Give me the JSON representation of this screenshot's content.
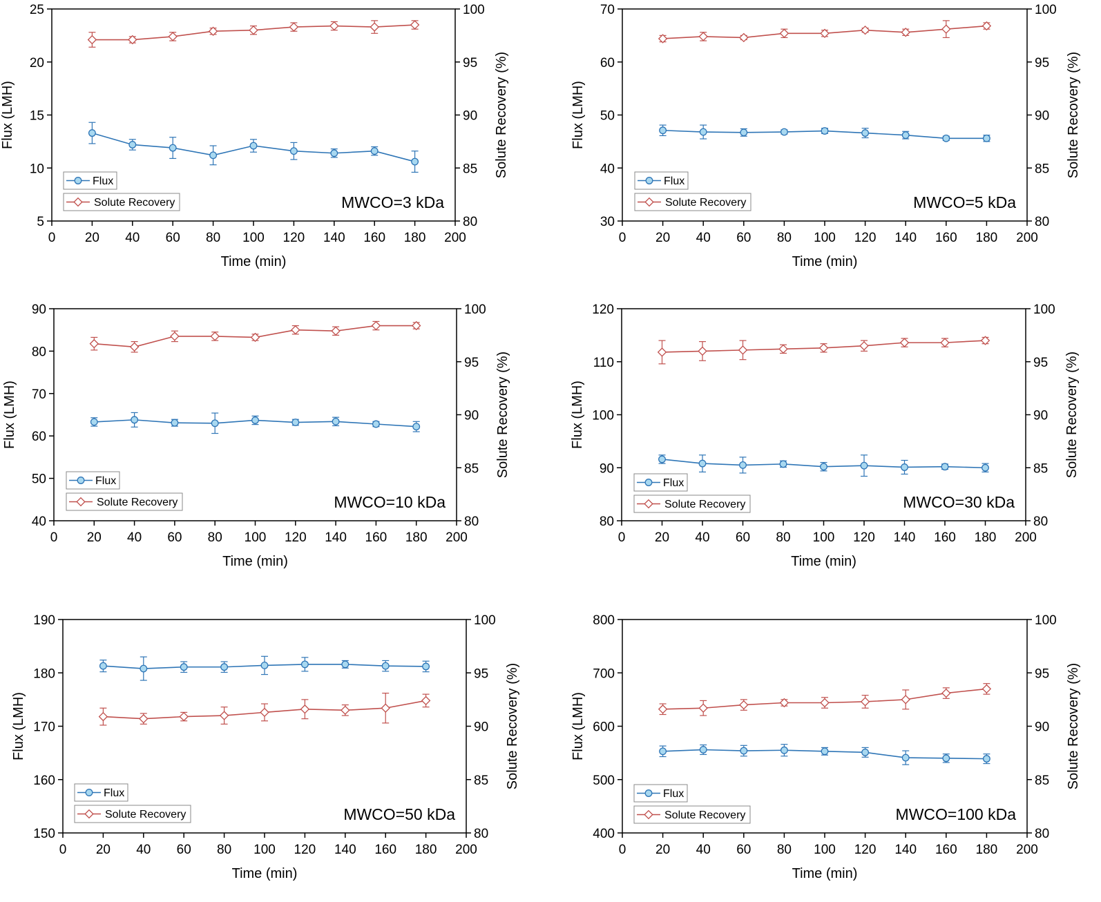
{
  "figure": {
    "series_names": [
      "Flux",
      "Solute Recovery"
    ],
    "colors": {
      "flux": "#2e75b6",
      "flux_fill": "#a8d8f0",
      "recovery": "#c0504d",
      "recovery_fill": "#ffffff",
      "axis": "#000000"
    }
  },
  "chart_data": [
    {
      "type": "line",
      "annotation": "MWCO=3 kDa",
      "xlabel": "Time (min)",
      "ylabel": "Flux (LMH)",
      "y2label": "Solute Recovery (%)",
      "xlim": [
        0,
        200
      ],
      "xticks": [
        0,
        20,
        40,
        60,
        80,
        100,
        120,
        140,
        160,
        180,
        200
      ],
      "ylim": [
        5,
        25
      ],
      "yticks": [
        5,
        10,
        15,
        20,
        25
      ],
      "y2lim": [
        80,
        100
      ],
      "y2ticks": [
        80,
        85,
        90,
        95,
        100
      ],
      "x": [
        20,
        40,
        60,
        80,
        100,
        120,
        140,
        160,
        180
      ],
      "series": [
        {
          "name": "Flux",
          "axis": "left",
          "values": [
            13.3,
            12.2,
            11.9,
            11.2,
            12.1,
            11.6,
            11.4,
            11.6,
            10.6
          ],
          "errors": [
            1.0,
            0.5,
            1.0,
            0.9,
            0.6,
            0.8,
            0.4,
            0.4,
            1.0
          ]
        },
        {
          "name": "Solute Recovery",
          "axis": "right",
          "values": [
            97.1,
            97.1,
            97.4,
            97.9,
            98.0,
            98.3,
            98.4,
            98.3,
            98.5
          ],
          "errors": [
            0.7,
            0.3,
            0.4,
            0.3,
            0.4,
            0.4,
            0.4,
            0.6,
            0.4
          ]
        }
      ]
    },
    {
      "type": "line",
      "annotation": "MWCO=5 kDa",
      "xlabel": "Time (min)",
      "ylabel": "Flux (LMH)",
      "y2label": "Solute Recovery (%)",
      "xlim": [
        0,
        200
      ],
      "xticks": [
        0,
        20,
        40,
        60,
        80,
        100,
        120,
        140,
        160,
        180,
        200
      ],
      "ylim": [
        30,
        70
      ],
      "yticks": [
        30,
        40,
        50,
        60,
        70
      ],
      "y2lim": [
        80,
        100
      ],
      "y2ticks": [
        80,
        85,
        90,
        95,
        100
      ],
      "x": [
        20,
        40,
        60,
        80,
        100,
        120,
        140,
        160,
        180
      ],
      "series": [
        {
          "name": "Flux",
          "axis": "left",
          "values": [
            47.1,
            46.8,
            46.7,
            46.8,
            47.0,
            46.6,
            46.2,
            45.6,
            45.6
          ],
          "errors": [
            1.0,
            1.3,
            0.7,
            0.4,
            0.5,
            0.9,
            0.7,
            0.4,
            0.6
          ]
        },
        {
          "name": "Solute Recovery",
          "axis": "right",
          "values": [
            97.2,
            97.4,
            97.3,
            97.7,
            97.7,
            98.0,
            97.8,
            98.1,
            98.4
          ],
          "errors": [
            0.3,
            0.4,
            0.2,
            0.4,
            0.3,
            0.2,
            0.3,
            0.8,
            0.3
          ]
        }
      ]
    },
    {
      "type": "line",
      "annotation": "MWCO=10 kDa",
      "xlabel": "Time (min)",
      "ylabel": "Flux (LMH)",
      "y2label": "Solute Recovery (%)",
      "xlim": [
        0,
        200
      ],
      "xticks": [
        0,
        20,
        40,
        60,
        80,
        100,
        120,
        140,
        160,
        180,
        200
      ],
      "ylim": [
        40,
        90
      ],
      "yticks": [
        40,
        50,
        60,
        70,
        80,
        90
      ],
      "y2lim": [
        80,
        100
      ],
      "y2ticks": [
        80,
        85,
        90,
        95,
        100
      ],
      "x": [
        20,
        40,
        60,
        80,
        100,
        120,
        140,
        160,
        180
      ],
      "series": [
        {
          "name": "Flux",
          "axis": "left",
          "values": [
            63.3,
            63.8,
            63.1,
            63.0,
            63.7,
            63.2,
            63.4,
            62.8,
            62.2
          ],
          "errors": [
            1.0,
            1.7,
            0.8,
            2.4,
            1.0,
            0.7,
            1.0,
            0.6,
            1.2
          ]
        },
        {
          "name": "Solute Recovery",
          "axis": "right",
          "values": [
            96.7,
            96.4,
            97.4,
            97.4,
            97.3,
            98.0,
            97.9,
            98.4,
            98.4
          ],
          "errors": [
            0.6,
            0.5,
            0.5,
            0.4,
            0.3,
            0.4,
            0.4,
            0.4,
            0.3
          ]
        }
      ]
    },
    {
      "type": "line",
      "annotation": "MWCO=30 kDa",
      "xlabel": "Time (min)",
      "ylabel": "Flux (LMH)",
      "y2label": "Solute Recovery (%)",
      "xlim": [
        0,
        200
      ],
      "xticks": [
        0,
        20,
        40,
        60,
        80,
        100,
        120,
        140,
        160,
        180,
        200
      ],
      "ylim": [
        80,
        120
      ],
      "yticks": [
        80,
        90,
        100,
        110,
        120
      ],
      "y2lim": [
        80,
        100
      ],
      "y2ticks": [
        80,
        85,
        90,
        95,
        100
      ],
      "x": [
        20,
        40,
        60,
        80,
        100,
        120,
        140,
        160,
        180
      ],
      "series": [
        {
          "name": "Flux",
          "axis": "left",
          "values": [
            91.6,
            90.8,
            90.5,
            90.7,
            90.2,
            90.4,
            90.1,
            90.2,
            90.0
          ],
          "errors": [
            0.8,
            1.6,
            1.5,
            0.6,
            0.8,
            2.0,
            1.3,
            0.5,
            0.8
          ]
        },
        {
          "name": "Solute Recovery",
          "axis": "right",
          "values": [
            95.9,
            96.0,
            96.1,
            96.2,
            96.3,
            96.5,
            96.8,
            96.8,
            97.0
          ],
          "errors": [
            1.1,
            0.9,
            0.9,
            0.4,
            0.4,
            0.5,
            0.4,
            0.4,
            0.3
          ]
        }
      ]
    },
    {
      "type": "line",
      "annotation": "MWCO=50 kDa",
      "xlabel": "Time (min)",
      "ylabel": "Flux (LMH)",
      "y2label": "Solute Recovery (%)",
      "xlim": [
        0,
        200
      ],
      "xticks": [
        0,
        20,
        40,
        60,
        80,
        100,
        120,
        140,
        160,
        180,
        200
      ],
      "ylim": [
        150,
        190
      ],
      "yticks": [
        150,
        160,
        170,
        180,
        190
      ],
      "y2lim": [
        80,
        100
      ],
      "y2ticks": [
        80,
        85,
        90,
        95,
        100
      ],
      "x": [
        20,
        40,
        60,
        80,
        100,
        120,
        140,
        160,
        180
      ],
      "series": [
        {
          "name": "Flux",
          "axis": "left",
          "values": [
            181.3,
            180.8,
            181.1,
            181.1,
            181.4,
            181.6,
            181.6,
            181.3,
            181.2
          ],
          "errors": [
            1.1,
            2.2,
            1.0,
            1.0,
            1.7,
            1.3,
            0.7,
            1.0,
            1.0
          ]
        },
        {
          "name": "Solute Recovery",
          "axis": "right",
          "values": [
            90.9,
            90.7,
            90.9,
            91.0,
            91.3,
            91.6,
            91.5,
            91.7,
            92.4
          ],
          "errors": [
            0.8,
            0.5,
            0.4,
            0.8,
            0.8,
            0.9,
            0.5,
            1.4,
            0.6
          ]
        }
      ]
    },
    {
      "type": "line",
      "annotation": "MWCO=100 kDa",
      "xlabel": "Time (min)",
      "ylabel": "Flux (LMH)",
      "y2label": "Solute Recovery (%)",
      "xlim": [
        0,
        200
      ],
      "xticks": [
        0,
        20,
        40,
        60,
        80,
        100,
        120,
        140,
        160,
        180,
        200
      ],
      "ylim": [
        400,
        800
      ],
      "yticks": [
        400,
        500,
        600,
        700,
        800
      ],
      "y2lim": [
        80,
        100
      ],
      "y2ticks": [
        80,
        85,
        90,
        95,
        100
      ],
      "x": [
        20,
        40,
        60,
        80,
        100,
        120,
        140,
        160,
        180
      ],
      "series": [
        {
          "name": "Flux",
          "axis": "left",
          "values": [
            553,
            556,
            554,
            555,
            553,
            551,
            541,
            540,
            539
          ],
          "errors": [
            10,
            9,
            10,
            11,
            7,
            9,
            13,
            8,
            9
          ]
        },
        {
          "name": "Solute Recovery",
          "axis": "right",
          "values": [
            91.6,
            91.7,
            92.0,
            92.2,
            92.2,
            92.3,
            92.5,
            93.1,
            93.5
          ],
          "errors": [
            0.5,
            0.7,
            0.5,
            0.3,
            0.5,
            0.6,
            0.9,
            0.5,
            0.5
          ]
        }
      ]
    }
  ]
}
